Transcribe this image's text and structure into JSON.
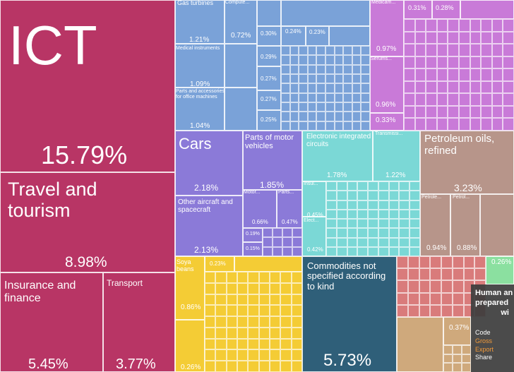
{
  "chart_data": {
    "type": "treemap",
    "title": "",
    "colors": {
      "services": "#b83565",
      "machines": "#7aa2d8",
      "chemicals": "#c97ad8",
      "transportation": "#8b7ad8",
      "electronics": "#7bd8d6",
      "mineral": "#b7958a",
      "vegetable": "#f4cc35",
      "unspecified": "#2f5f79",
      "metals": "#d97b7b",
      "foodstuffs": "#cfa97c",
      "animal": "#8be0a0"
    },
    "items": [
      {
        "name": "ICT",
        "value": 15.79,
        "color": "#b83565"
      },
      {
        "name": "Travel and tourism",
        "value": 8.98,
        "color": "#b83565"
      },
      {
        "name": "Insurance and finance",
        "value": 5.45,
        "color": "#b83565"
      },
      {
        "name": "Transport",
        "value": 3.77,
        "color": "#b83565"
      },
      {
        "name": "Gas turbines",
        "value": 1.21,
        "color": "#7aa2d8"
      },
      {
        "name": "Medical instruments",
        "value": 1.09,
        "color": "#7aa2d8"
      },
      {
        "name": "Parts and accessories for office machines",
        "value": 1.04,
        "color": "#7aa2d8"
      },
      {
        "name": "Compute...",
        "value": 0.72,
        "color": "#7aa2d8"
      },
      {
        "name": "Medicam...",
        "value": 0.97,
        "color": "#c97ad8"
      },
      {
        "name": "Serums...",
        "value": 0.96,
        "color": "#c97ad8"
      },
      {
        "name": "Cars",
        "value": 2.18,
        "color": "#8b7ad8"
      },
      {
        "name": "Other aircraft and spacecraft",
        "value": 2.13,
        "color": "#8b7ad8"
      },
      {
        "name": "Parts of motor vehicles",
        "value": 1.85,
        "color": "#8b7ad8"
      },
      {
        "name": "Motor...",
        "value": 0.66,
        "color": "#8b7ad8"
      },
      {
        "name": "Parts...",
        "value": 0.47,
        "color": "#8b7ad8"
      },
      {
        "name": "Electronic integrated circuits",
        "value": 1.78,
        "color": "#7bd8d6"
      },
      {
        "name": "Transmissi...",
        "value": 1.22,
        "color": "#7bd8d6"
      },
      {
        "name": "Insul...",
        "value": 0.45,
        "color": "#7bd8d6"
      },
      {
        "name": "Elect...",
        "value": 0.42,
        "color": "#7bd8d6"
      },
      {
        "name": "Petroleum oils, refined",
        "value": 3.23,
        "color": "#b7958a"
      },
      {
        "name": "Petrole...",
        "value": 0.94,
        "color": "#b7958a"
      },
      {
        "name": "Petrol...",
        "value": 0.88,
        "color": "#b7958a"
      },
      {
        "name": "Soya beans",
        "value": 0.86,
        "color": "#f4cc35"
      },
      {
        "name": "Commodities not specified according to kind",
        "value": 5.73,
        "color": "#2f5f79"
      }
    ],
    "small_values": [
      "0.30%",
      "0.29%",
      "0.27%",
      "0.27%",
      "0.25%",
      "0.24%",
      "0.23%",
      "0.31%",
      "0.28%",
      "0.33%",
      "0.19%",
      "0.15%",
      "0.23%",
      "0.26%",
      "0.37%",
      "0.26%"
    ]
  },
  "tooltip": {
    "title_lines": [
      "Human an",
      "prepared",
      "wi"
    ],
    "rows": [
      {
        "label": "Code",
        "color": "#ffffff"
      },
      {
        "label": "Gross",
        "color": "#f29a3a"
      },
      {
        "label": "Export",
        "color": "#f29a3a"
      },
      {
        "label": "Share",
        "color": "#ffffff"
      }
    ]
  }
}
